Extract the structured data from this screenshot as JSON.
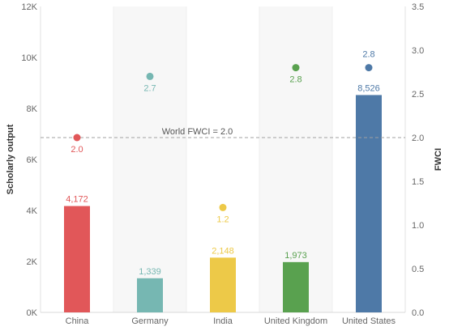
{
  "chart_data": {
    "type": "bar",
    "categories": [
      "China",
      "Germany",
      "India",
      "United Kingdom",
      "United States"
    ],
    "series": [
      {
        "name": "Scholarly output",
        "type": "bar",
        "axis": "left",
        "values": [
          4172,
          1339,
          2148,
          1973,
          8526
        ],
        "labels": [
          "4,172",
          "1,339",
          "2,148",
          "1,973",
          "8,526"
        ]
      },
      {
        "name": "FWCI",
        "type": "scatter",
        "axis": "right",
        "values": [
          2.0,
          2.7,
          1.2,
          2.8,
          2.8
        ],
        "labels": [
          "2.0",
          "2.7",
          "1.2",
          "2.8",
          "2.8"
        ],
        "label_position": [
          "below",
          "below",
          "below",
          "below",
          "above"
        ]
      }
    ],
    "colors": [
      "#e15759",
      "#76b7b2",
      "#edc948",
      "#59a14f",
      "#4e79a7"
    ],
    "ylabel": "Scholarly output",
    "ylabel_right": "FWCI",
    "ylim": [
      0,
      12000
    ],
    "ylim_right": [
      0,
      3.5
    ],
    "yticks": [
      {
        "value": 0,
        "label": "0K"
      },
      {
        "value": 2000,
        "label": "2K"
      },
      {
        "value": 4000,
        "label": "4K"
      },
      {
        "value": 6000,
        "label": "6K"
      },
      {
        "value": 8000,
        "label": "8K"
      },
      {
        "value": 10000,
        "label": "10K"
      },
      {
        "value": 12000,
        "label": "12K"
      }
    ],
    "yticks_right": [
      {
        "value": 0,
        "label": "0.0"
      },
      {
        "value": 0.5,
        "label": "0.5"
      },
      {
        "value": 1.0,
        "label": "1.0"
      },
      {
        "value": 1.5,
        "label": "1.5"
      },
      {
        "value": 2.0,
        "label": "2.0"
      },
      {
        "value": 2.5,
        "label": "2.5"
      },
      {
        "value": 3.0,
        "label": "3.0"
      },
      {
        "value": 3.5,
        "label": "3.5"
      }
    ],
    "reference_line": {
      "value": 2.0,
      "axis": "right",
      "label": "World FWCI = 2.0"
    },
    "grid": "vertical-bands",
    "legend": "none"
  }
}
